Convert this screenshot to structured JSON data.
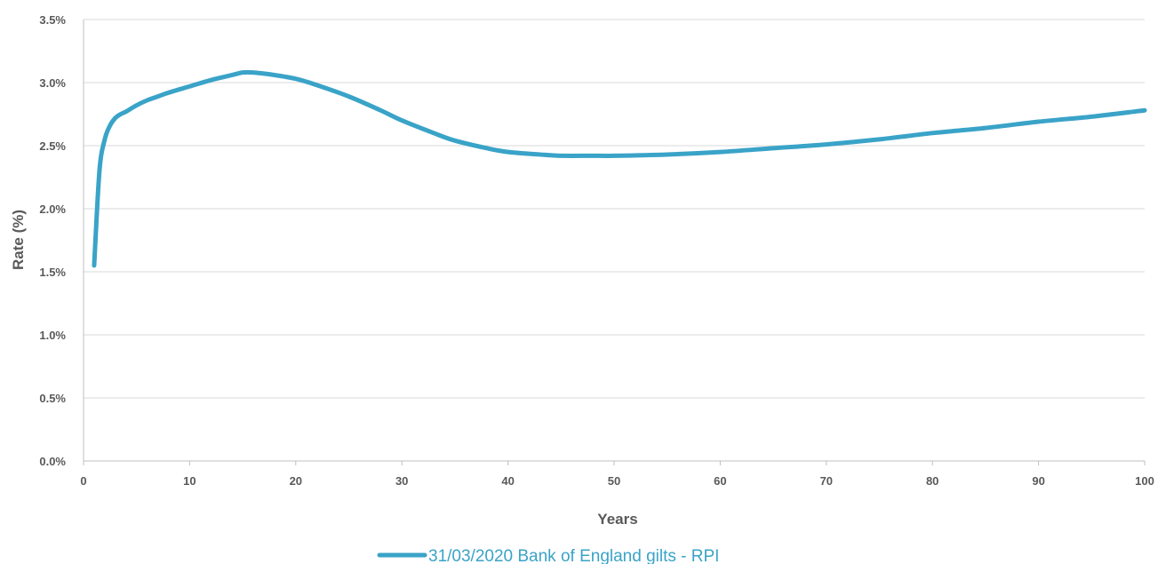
{
  "chart_data": {
    "type": "line",
    "title": "",
    "xlabel": "Years",
    "ylabel": "Rate (%)",
    "xlim": [
      0,
      100
    ],
    "ylim": [
      0,
      3.5
    ],
    "x_ticks": [
      0,
      10,
      20,
      30,
      40,
      50,
      60,
      70,
      80,
      90,
      100
    ],
    "x_tick_labels": [
      "0",
      "10",
      "20",
      "30",
      "40",
      "50",
      "60",
      "70",
      "80",
      "90",
      "100"
    ],
    "y_ticks": [
      0,
      0.5,
      1.0,
      1.5,
      2.0,
      2.5,
      3.0,
      3.5
    ],
    "y_tick_labels": [
      "0.0%",
      "0.5%",
      "1.0%",
      "1.5%",
      "2.0%",
      "2.5%",
      "3.0%",
      "3.5%"
    ],
    "grid": "horizontal",
    "legend_position": "bottom",
    "series": [
      {
        "name": "31/03/2020 Bank of England gilts - RPI",
        "color": "#3aa3c8",
        "x": [
          1,
          1.5,
          2,
          2.5,
          3,
          3.5,
          4,
          5,
          6,
          7,
          8,
          10,
          12,
          14,
          15,
          16,
          18,
          20,
          22,
          25,
          28,
          30,
          33,
          35,
          38,
          40,
          43,
          45,
          48,
          50,
          55,
          60,
          65,
          70,
          75,
          80,
          85,
          90,
          95,
          100
        ],
        "y": [
          1.55,
          2.3,
          2.55,
          2.66,
          2.72,
          2.75,
          2.77,
          2.82,
          2.86,
          2.89,
          2.92,
          2.97,
          3.02,
          3.06,
          3.08,
          3.08,
          3.06,
          3.03,
          2.98,
          2.89,
          2.78,
          2.7,
          2.6,
          2.54,
          2.48,
          2.45,
          2.43,
          2.42,
          2.42,
          2.42,
          2.43,
          2.45,
          2.48,
          2.51,
          2.55,
          2.6,
          2.64,
          2.69,
          2.73,
          2.78
        ]
      }
    ]
  }
}
